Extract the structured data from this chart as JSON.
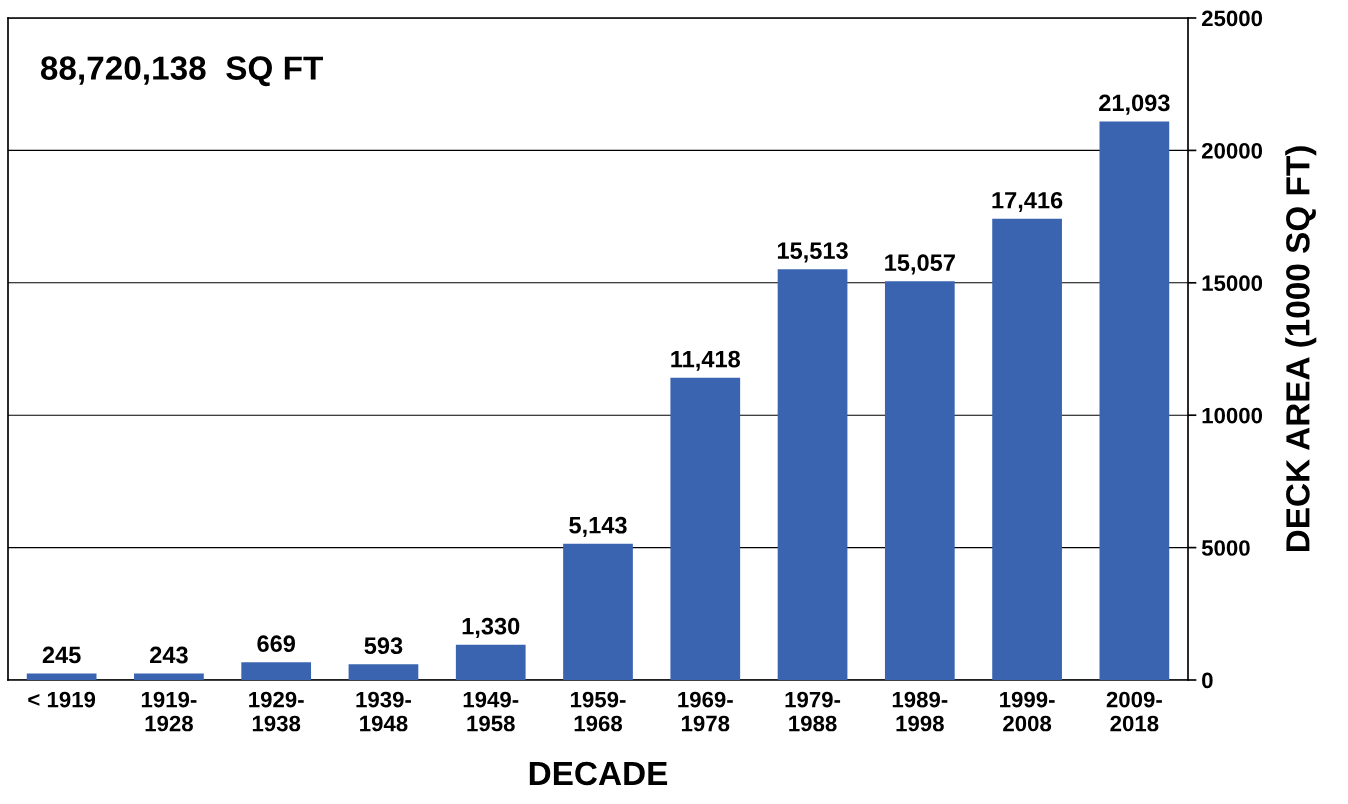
{
  "chart_data": {
    "type": "bar",
    "annotations": [
      "88,720,138  SQ FT"
    ],
    "xlabel": "DECADE",
    "ylabel": "DECK AREA (1000 SQ FT)",
    "categories": [
      "< 1919",
      "1919-\n1928",
      "1929-\n1938",
      "1939-\n1948",
      "1949-\n1958",
      "1959-\n1968",
      "1969-\n1978",
      "1979-\n1988",
      "1989-\n1998",
      "1999-\n2008",
      "2009-\n2018"
    ],
    "values": [
      245,
      243,
      669,
      593,
      1330,
      5143,
      11418,
      15513,
      15057,
      17416,
      21093
    ],
    "value_labels": [
      "245",
      "243",
      "669",
      "593",
      "1,330",
      "5,143",
      "11,418",
      "15,513",
      "15,057",
      "17,416",
      "21,093"
    ],
    "color": "#3a64b0",
    "ylim": [
      0,
      25000
    ],
    "yticks": [
      0,
      5000,
      10000,
      15000,
      20000,
      25000
    ],
    "grid": "y",
    "legend": false
  }
}
